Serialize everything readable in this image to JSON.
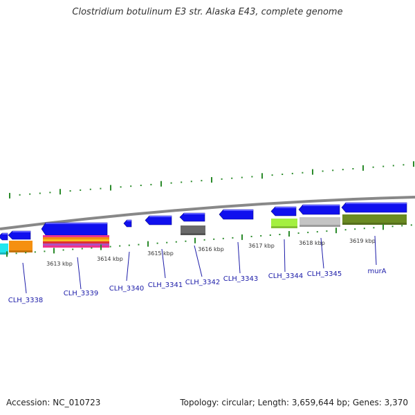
{
  "title": "Clostridium botulinum E3 str. Alaska E43, complete genome",
  "footer": {
    "accession": "Accession: NC_010723",
    "info": "Topology: circular; Length: 3,659,644 bp; Genes: 3,370"
  },
  "colors": {
    "cds": "#1010ee",
    "backbone": "#888888",
    "tick": "#2a8a2a",
    "label": "#1a1aa8",
    "band_cyan": "#22e6ee",
    "band_orange": "#f59010",
    "band_lime": "#a4f040",
    "band_lightgray": "#c4c4c4",
    "band_olive": "#6a8a22",
    "band_darkgray": "#6a6a6a",
    "band_pink": "#ee3390"
  },
  "kbp_labels": [
    "3613 kbp",
    "3614 kbp",
    "3615 kbp",
    "3616 kbp",
    "3617 kbp",
    "3618 kbp",
    "3619 kbp"
  ],
  "genes": [
    "CLH_3338",
    "CLH_3339",
    "CLH_3340",
    "CLH_3341",
    "CLH_3342",
    "CLH_3343",
    "CLH_3344",
    "CLH_3345",
    "murA"
  ]
}
